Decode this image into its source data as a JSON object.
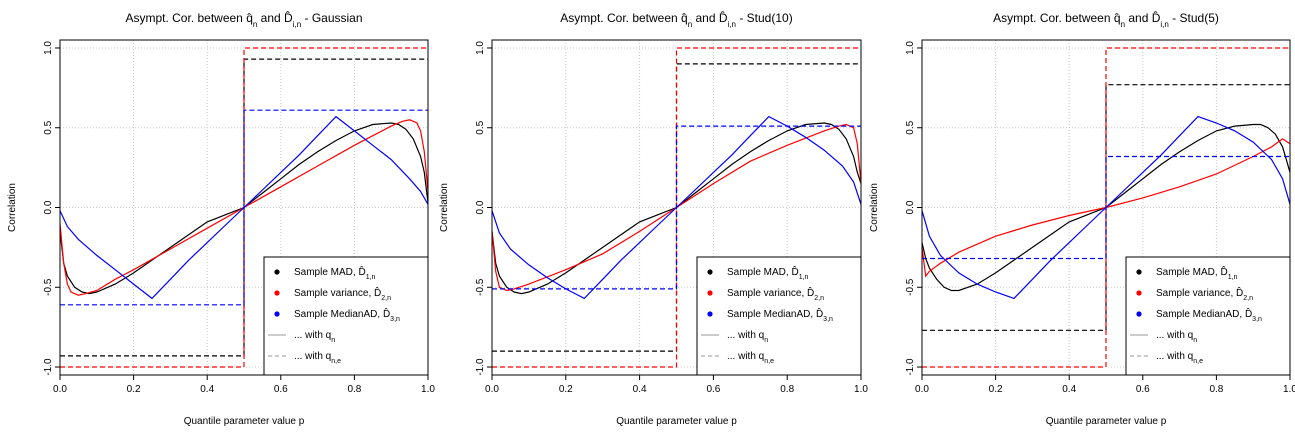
{
  "chart_data": [
    {
      "type": "line",
      "title": "Asympt. Cor. between q̂n and D̂i,n - Gaussian",
      "xlabel": "Quantile parameter value p",
      "ylabel": "Correlation",
      "xlim": [
        0,
        1
      ],
      "ylim": [
        -1.05,
        1.05
      ],
      "x_ticks": [
        "0.0",
        "0.2",
        "0.4",
        "0.6",
        "0.8",
        "1.0"
      ],
      "y_ticks": [
        "-1.0",
        "-0.5",
        "0.0",
        "0.5",
        "1.0"
      ],
      "grid": true,
      "legend_position": "bottom-right",
      "legend": [
        {
          "label": "Sample MAD,  D̂1,n",
          "color": "#000000",
          "kind": "dot"
        },
        {
          "label": "Sample variance,  D̂2,n",
          "color": "#ff0000",
          "kind": "dot"
        },
        {
          "label": "Sample MedianAD,  D̂3,n",
          "color": "#0000ff",
          "kind": "dot"
        },
        {
          "label": "... with qn",
          "color": "#999999",
          "kind": "solid"
        },
        {
          "label": "... with qn,e",
          "color": "#999999",
          "kind": "dashed"
        }
      ],
      "series": [
        {
          "name": "Sample MAD, D1,n",
          "style": "solid",
          "color": "#000000",
          "x": [
            0.0,
            0.01,
            0.02,
            0.04,
            0.06,
            0.08,
            0.1,
            0.15,
            0.2,
            0.25,
            0.3,
            0.35,
            0.4,
            0.45,
            0.5,
            0.55,
            0.6,
            0.65,
            0.7,
            0.75,
            0.8,
            0.85,
            0.9,
            0.92,
            0.94,
            0.96,
            0.98,
            0.99,
            1.0
          ],
          "y": [
            -0.15,
            -0.35,
            -0.43,
            -0.5,
            -0.53,
            -0.54,
            -0.53,
            -0.48,
            -0.41,
            -0.33,
            -0.25,
            -0.17,
            -0.09,
            -0.045,
            0.0,
            0.09,
            0.18,
            0.27,
            0.35,
            0.42,
            0.48,
            0.52,
            0.53,
            0.52,
            0.49,
            0.43,
            0.32,
            0.22,
            0.03
          ]
        },
        {
          "name": "Sample variance, D2,n",
          "style": "solid",
          "color": "#ff0000",
          "x": [
            0.0,
            0.01,
            0.02,
            0.03,
            0.05,
            0.07,
            0.1,
            0.15,
            0.2,
            0.3,
            0.4,
            0.5,
            0.6,
            0.7,
            0.8,
            0.85,
            0.9,
            0.93,
            0.95,
            0.97,
            0.98,
            0.99,
            1.0
          ],
          "y": [
            -0.1,
            -0.35,
            -0.48,
            -0.53,
            -0.55,
            -0.54,
            -0.52,
            -0.45,
            -0.39,
            -0.26,
            -0.13,
            0.0,
            0.13,
            0.26,
            0.39,
            0.45,
            0.51,
            0.54,
            0.55,
            0.53,
            0.48,
            0.35,
            0.1
          ]
        },
        {
          "name": "Sample MedianAD, D3,n",
          "style": "solid",
          "color": "#0000ff",
          "x": [
            0.0,
            0.02,
            0.05,
            0.1,
            0.15,
            0.2,
            0.25,
            0.3,
            0.35,
            0.4,
            0.45,
            0.5,
            0.55,
            0.6,
            0.65,
            0.7,
            0.75,
            0.8,
            0.85,
            0.9,
            0.95,
            0.98,
            1.0
          ],
          "y": [
            -0.02,
            -0.12,
            -0.2,
            -0.3,
            -0.39,
            -0.48,
            -0.57,
            -0.45,
            -0.33,
            -0.22,
            -0.11,
            0.0,
            0.11,
            0.22,
            0.33,
            0.45,
            0.57,
            0.48,
            0.39,
            0.3,
            0.18,
            0.1,
            0.02
          ]
        },
        {
          "name": "MAD with qn,e",
          "style": "dashed",
          "color": "#000000",
          "x": [
            0.0,
            0.5,
            0.5,
            1.0
          ],
          "y": [
            -0.93,
            -0.93,
            0.93,
            0.93
          ]
        },
        {
          "name": "Variance with qn,e",
          "style": "dashed",
          "color": "#ff0000",
          "x": [
            0.0,
            0.5,
            0.5,
            1.0
          ],
          "y": [
            -1.0,
            -1.0,
            1.0,
            1.0
          ]
        },
        {
          "name": "MedianAD with qn,e",
          "style": "dashed",
          "color": "#0000ff",
          "x": [
            0.0,
            0.5,
            0.5,
            1.0
          ],
          "y": [
            -0.61,
            -0.61,
            0.61,
            0.61
          ]
        }
      ]
    },
    {
      "type": "line",
      "title": "Asympt. Cor. between q̂n and D̂i,n - Stud(10)",
      "xlabel": "Quantile parameter value p",
      "ylabel": "Correlation",
      "xlim": [
        0,
        1
      ],
      "ylim": [
        -1.05,
        1.05
      ],
      "x_ticks": [
        "0.0",
        "0.2",
        "0.4",
        "0.6",
        "0.8",
        "1.0"
      ],
      "y_ticks": [
        "-1.0",
        "-0.5",
        "0.0",
        "0.5",
        "1.0"
      ],
      "grid": true,
      "legend_position": "bottom-right",
      "legend": [
        {
          "label": "Sample MAD,  D̂1,n",
          "color": "#000000",
          "kind": "dot"
        },
        {
          "label": "Sample variance,  D̂2,n",
          "color": "#ff0000",
          "kind": "dot"
        },
        {
          "label": "Sample MedianAD,  D̂3,n",
          "color": "#0000ff",
          "kind": "dot"
        },
        {
          "label": "... with qn",
          "color": "#999999",
          "kind": "solid"
        },
        {
          "label": "... with qn,e",
          "color": "#999999",
          "kind": "dashed"
        }
      ],
      "series": [
        {
          "name": "Sample MAD, D1,n",
          "style": "solid",
          "color": "#000000",
          "x": [
            0.0,
            0.01,
            0.02,
            0.04,
            0.06,
            0.08,
            0.1,
            0.15,
            0.2,
            0.25,
            0.3,
            0.35,
            0.4,
            0.45,
            0.5,
            0.55,
            0.6,
            0.65,
            0.7,
            0.75,
            0.8,
            0.85,
            0.9,
            0.92,
            0.94,
            0.96,
            0.98,
            0.99,
            1.0
          ],
          "y": [
            -0.15,
            -0.35,
            -0.43,
            -0.5,
            -0.53,
            -0.54,
            -0.53,
            -0.48,
            -0.41,
            -0.33,
            -0.25,
            -0.17,
            -0.09,
            -0.045,
            0.0,
            0.09,
            0.18,
            0.27,
            0.35,
            0.42,
            0.48,
            0.52,
            0.53,
            0.52,
            0.49,
            0.43,
            0.32,
            0.22,
            0.15
          ]
        },
        {
          "name": "Sample variance, D2,n",
          "style": "solid",
          "color": "#ff0000",
          "x": [
            0.0,
            0.01,
            0.02,
            0.04,
            0.06,
            0.1,
            0.2,
            0.3,
            0.4,
            0.5,
            0.6,
            0.7,
            0.8,
            0.9,
            0.94,
            0.96,
            0.98,
            0.99,
            1.0
          ],
          "y": [
            -0.15,
            -0.4,
            -0.5,
            -0.52,
            -0.51,
            -0.48,
            -0.39,
            -0.29,
            -0.15,
            0.0,
            0.15,
            0.29,
            0.39,
            0.48,
            0.51,
            0.52,
            0.5,
            0.4,
            0.15
          ]
        },
        {
          "name": "Sample MedianAD, D3,n",
          "style": "solid",
          "color": "#0000ff",
          "x": [
            0.0,
            0.02,
            0.05,
            0.1,
            0.15,
            0.2,
            0.25,
            0.3,
            0.35,
            0.4,
            0.45,
            0.5,
            0.55,
            0.6,
            0.65,
            0.7,
            0.75,
            0.8,
            0.85,
            0.9,
            0.95,
            0.98,
            1.0
          ],
          "y": [
            -0.02,
            -0.16,
            -0.26,
            -0.36,
            -0.44,
            -0.51,
            -0.57,
            -0.45,
            -0.33,
            -0.22,
            -0.11,
            0.0,
            0.11,
            0.22,
            0.33,
            0.45,
            0.57,
            0.51,
            0.44,
            0.36,
            0.26,
            0.16,
            0.02
          ]
        },
        {
          "name": "MAD with qn,e",
          "style": "dashed",
          "color": "#000000",
          "x": [
            0.0,
            0.5,
            0.5,
            1.0
          ],
          "y": [
            -0.9,
            -0.9,
            0.9,
            0.9
          ]
        },
        {
          "name": "Variance with qn,e",
          "style": "dashed",
          "color": "#ff0000",
          "x": [
            0.0,
            0.5,
            0.5,
            1.0
          ],
          "y": [
            -1.0,
            -1.0,
            1.0,
            1.0
          ]
        },
        {
          "name": "MedianAD with qn,e",
          "style": "dashed",
          "color": "#0000ff",
          "x": [
            0.0,
            0.5,
            0.5,
            1.0
          ],
          "y": [
            -0.51,
            -0.51,
            0.51,
            0.51
          ]
        }
      ]
    },
    {
      "type": "line",
      "title": "Asympt. Cor. between q̂n and D̂i,n - Stud(5)",
      "xlabel": "Quantile parameter value p",
      "ylabel": "Correlation",
      "xlim": [
        0,
        1
      ],
      "ylim": [
        -1.05,
        1.05
      ],
      "x_ticks": [
        "0.0",
        "0.2",
        "0.4",
        "0.6",
        "0.8",
        "1.0"
      ],
      "y_ticks": [
        "-1.0",
        "-0.5",
        "0.0",
        "0.5",
        "1.0"
      ],
      "grid": true,
      "legend_position": "bottom-right",
      "legend": [
        {
          "label": "Sample MAD,  D̂1,n",
          "color": "#000000",
          "kind": "dot"
        },
        {
          "label": "Sample variance,  D̂2,n",
          "color": "#ff0000",
          "kind": "dot"
        },
        {
          "label": "Sample MedianAD,  D̂3,n",
          "color": "#0000ff",
          "kind": "dot"
        },
        {
          "label": "... with qn",
          "color": "#999999",
          "kind": "solid"
        },
        {
          "label": "... with qn,e",
          "color": "#999999",
          "kind": "dashed"
        }
      ],
      "series": [
        {
          "name": "Sample MAD, D1,n",
          "style": "solid",
          "color": "#000000",
          "x": [
            0.0,
            0.01,
            0.02,
            0.04,
            0.06,
            0.08,
            0.1,
            0.15,
            0.2,
            0.25,
            0.3,
            0.35,
            0.4,
            0.45,
            0.5,
            0.55,
            0.6,
            0.65,
            0.7,
            0.75,
            0.8,
            0.85,
            0.9,
            0.92,
            0.94,
            0.96,
            0.98,
            0.99,
            1.0
          ],
          "y": [
            -0.22,
            -0.32,
            -0.38,
            -0.45,
            -0.5,
            -0.52,
            -0.52,
            -0.48,
            -0.41,
            -0.33,
            -0.25,
            -0.17,
            -0.09,
            -0.045,
            0.0,
            0.09,
            0.18,
            0.27,
            0.35,
            0.42,
            0.48,
            0.51,
            0.52,
            0.52,
            0.5,
            0.46,
            0.38,
            0.3,
            0.22
          ]
        },
        {
          "name": "Sample variance, D2,n",
          "style": "solid",
          "color": "#ff0000",
          "x": [
            0.0,
            0.01,
            0.02,
            0.05,
            0.1,
            0.2,
            0.3,
            0.4,
            0.5,
            0.6,
            0.7,
            0.8,
            0.9,
            0.95,
            0.98,
            1.0
          ],
          "y": [
            -0.25,
            -0.43,
            -0.4,
            -0.35,
            -0.28,
            -0.18,
            -0.11,
            -0.05,
            0.0,
            0.06,
            0.13,
            0.21,
            0.32,
            0.38,
            0.43,
            0.4
          ]
        },
        {
          "name": "Sample MedianAD, D3,n",
          "style": "solid",
          "color": "#0000ff",
          "x": [
            0.0,
            0.02,
            0.05,
            0.1,
            0.15,
            0.2,
            0.25,
            0.3,
            0.35,
            0.4,
            0.45,
            0.5,
            0.55,
            0.6,
            0.65,
            0.7,
            0.75,
            0.8,
            0.85,
            0.9,
            0.95,
            0.98,
            1.0
          ],
          "y": [
            -0.02,
            -0.18,
            -0.3,
            -0.41,
            -0.48,
            -0.53,
            -0.57,
            -0.45,
            -0.33,
            -0.22,
            -0.11,
            0.0,
            0.11,
            0.22,
            0.33,
            0.45,
            0.57,
            0.53,
            0.48,
            0.41,
            0.3,
            0.18,
            0.02
          ]
        },
        {
          "name": "MAD with qn,e",
          "style": "dashed",
          "color": "#000000",
          "x": [
            0.0,
            0.5,
            0.5,
            1.0
          ],
          "y": [
            -0.77,
            -0.77,
            0.77,
            0.77
          ]
        },
        {
          "name": "Variance with qn,e",
          "style": "dashed",
          "color": "#ff0000",
          "x": [
            0.0,
            0.5,
            0.5,
            1.0
          ],
          "y": [
            -1.0,
            -1.0,
            1.0,
            1.0
          ]
        },
        {
          "name": "MedianAD with qn,e",
          "style": "dashed",
          "color": "#0000ff",
          "x": [
            0.0,
            0.5,
            0.5,
            1.0
          ],
          "y": [
            -0.32,
            -0.32,
            0.32,
            0.32
          ]
        }
      ]
    }
  ]
}
